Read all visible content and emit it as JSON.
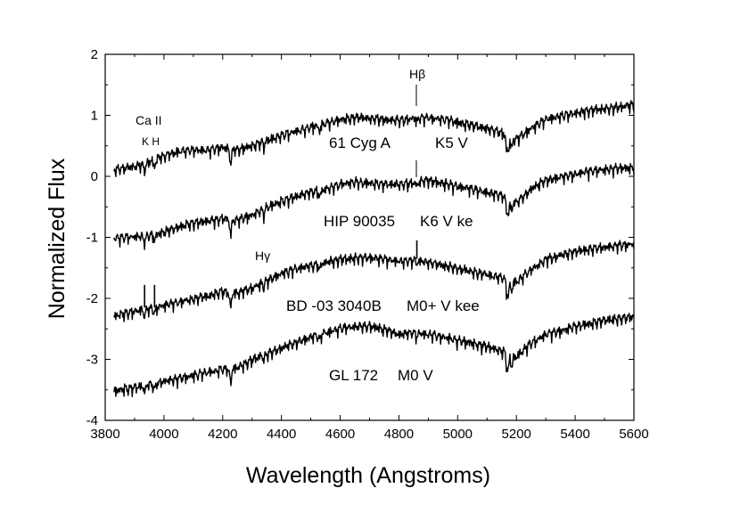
{
  "chart_data": {
    "type": "line",
    "title": "",
    "xlabel": "Wavelength (Angstroms)",
    "ylabel": "Normalized Flux",
    "xlim": [
      3800,
      5600
    ],
    "ylim": [
      -4,
      2
    ],
    "x_ticks": [
      "3800",
      "4000",
      "4200",
      "4400",
      "4600",
      "4800",
      "5000",
      "5200",
      "5400",
      "5600"
    ],
    "y_ticks": [
      "2",
      "1",
      "0",
      "-1",
      "-2",
      "-3",
      "-4"
    ],
    "grid": false,
    "legend": "none",
    "series": [
      {
        "name": "61 Cyg A  K5 V",
        "label_parts": [
          "61 Cyg A",
          "K5 V"
        ],
        "x": [
          3830,
          3900,
          3950,
          4000,
          4050,
          4100,
          4150,
          4200,
          4250,
          4300,
          4350,
          4400,
          4450,
          4500,
          4550,
          4600,
          4650,
          4700,
          4750,
          4800,
          4850,
          4900,
          4950,
          5000,
          5050,
          5100,
          5150,
          5200,
          5250,
          5300,
          5350,
          5400,
          5450,
          5500,
          5550,
          5600
        ],
        "values": [
          0.12,
          0.17,
          0.25,
          0.35,
          0.42,
          0.45,
          0.44,
          0.48,
          0.45,
          0.52,
          0.6,
          0.68,
          0.75,
          0.82,
          0.88,
          0.94,
          0.98,
          0.96,
          0.95,
          0.93,
          0.96,
          0.98,
          0.95,
          0.9,
          0.85,
          0.8,
          0.72,
          0.62,
          0.8,
          0.95,
          1.0,
          1.05,
          1.1,
          1.12,
          1.15,
          1.18
        ]
      },
      {
        "name": "HIP 90035  K6 V ke",
        "label_parts": [
          "HIP 90035",
          "K6 V ke"
        ],
        "x": [
          3830,
          3900,
          3950,
          4000,
          4050,
          4100,
          4150,
          4200,
          4250,
          4300,
          4350,
          4400,
          4450,
          4500,
          4550,
          4600,
          4650,
          4700,
          4750,
          4800,
          4850,
          4900,
          4950,
          5000,
          5050,
          5100,
          5150,
          5200,
          5250,
          5300,
          5350,
          5400,
          5450,
          5500,
          5550,
          5600
        ],
        "values": [
          -1.0,
          -0.98,
          -0.95,
          -0.9,
          -0.82,
          -0.75,
          -0.72,
          -0.68,
          -0.7,
          -0.62,
          -0.5,
          -0.4,
          -0.32,
          -0.25,
          -0.2,
          -0.12,
          -0.08,
          -0.1,
          -0.12,
          -0.12,
          -0.1,
          -0.05,
          -0.1,
          -0.15,
          -0.2,
          -0.25,
          -0.3,
          -0.42,
          -0.2,
          -0.05,
          0.0,
          0.05,
          0.1,
          0.12,
          0.15,
          0.15
        ]
      },
      {
        "name": "BD -03 3040B  M0+ V kee",
        "label_parts": [
          "BD -03 3040B",
          "M0+ V kee"
        ],
        "x": [
          3830,
          3900,
          3950,
          4000,
          4050,
          4100,
          4150,
          4200,
          4250,
          4300,
          4350,
          4400,
          4450,
          4500,
          4550,
          4600,
          4650,
          4700,
          4750,
          4800,
          4850,
          4900,
          4950,
          5000,
          5050,
          5100,
          5150,
          5200,
          5250,
          5300,
          5350,
          5400,
          5450,
          5500,
          5550,
          5600
        ],
        "values": [
          -2.28,
          -2.2,
          -2.15,
          -2.1,
          -2.05,
          -2.0,
          -1.95,
          -1.88,
          -1.9,
          -1.82,
          -1.7,
          -1.58,
          -1.5,
          -1.45,
          -1.4,
          -1.35,
          -1.33,
          -1.32,
          -1.34,
          -1.38,
          -1.36,
          -1.4,
          -1.45,
          -1.5,
          -1.55,
          -1.6,
          -1.65,
          -1.72,
          -1.52,
          -1.35,
          -1.28,
          -1.22,
          -1.18,
          -1.15,
          -1.12,
          -1.1
        ]
      },
      {
        "name": "GL 172  M0 V",
        "label_parts": [
          "GL 172",
          "M0 V"
        ],
        "x": [
          3830,
          3900,
          3950,
          4000,
          4050,
          4100,
          4150,
          4200,
          4250,
          4300,
          4350,
          4400,
          4450,
          4500,
          4550,
          4600,
          4650,
          4700,
          4750,
          4800,
          4850,
          4900,
          4950,
          5000,
          5050,
          5100,
          5150,
          5200,
          5250,
          5300,
          5350,
          5400,
          5450,
          5500,
          5550,
          5600
        ],
        "values": [
          -3.5,
          -3.45,
          -3.4,
          -3.35,
          -3.3,
          -3.25,
          -3.2,
          -3.15,
          -3.12,
          -3.0,
          -2.9,
          -2.8,
          -2.72,
          -2.62,
          -2.55,
          -2.48,
          -2.45,
          -2.44,
          -2.5,
          -2.58,
          -2.55,
          -2.58,
          -2.62,
          -2.68,
          -2.72,
          -2.78,
          -2.85,
          -2.95,
          -2.72,
          -2.58,
          -2.52,
          -2.45,
          -2.4,
          -2.35,
          -2.32,
          -2.28
        ]
      }
    ],
    "annotations": {
      "caII": "Ca II",
      "kh": "K H",
      "hbeta": "Hβ",
      "hgamma": "Hγ"
    }
  }
}
